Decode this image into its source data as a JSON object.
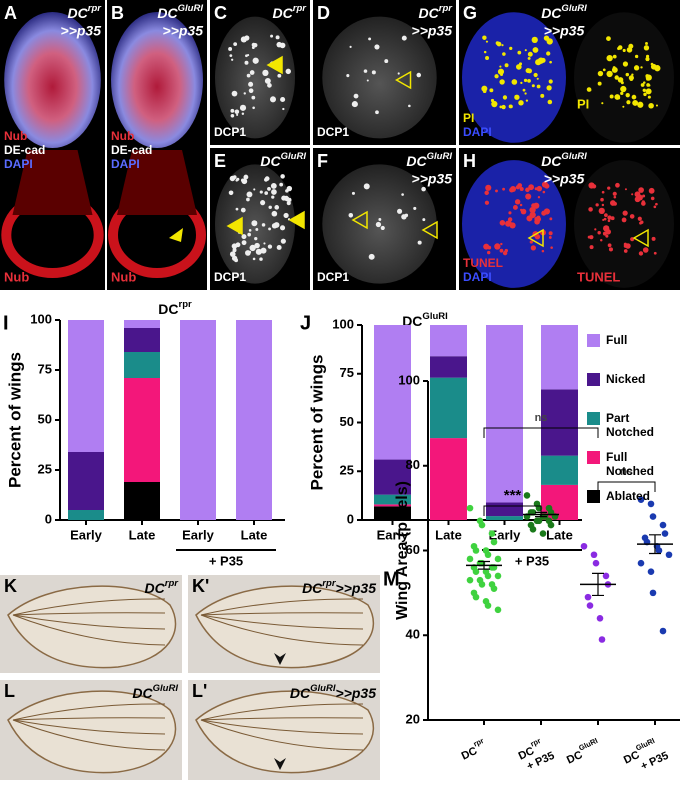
{
  "panels": [
    {
      "letter": "A",
      "genotype": "DC",
      "sup": "rpr",
      "suffix": ">>p35",
      "stains": [
        "Nub",
        "DE-cad",
        "DAPI"
      ],
      "stain_colors": [
        "#e8303a",
        "#ffffff",
        "#5a6cff"
      ],
      "second": [
        "Nub"
      ],
      "second_colors": [
        "#e8303a"
      ]
    },
    {
      "letter": "B",
      "genotype": "DC",
      "sup": "GluRI",
      "suffix": ">>p35",
      "stains": [
        "Nub",
        "DE-cad",
        "DAPI"
      ],
      "stain_colors": [
        "#e8303a",
        "#ffffff",
        "#5a6cff"
      ],
      "second": [
        "Nub"
      ],
      "second_colors": [
        "#e8303a"
      ]
    },
    {
      "letter": "C",
      "genotype": "DC",
      "sup": "rpr",
      "stains": [
        "DCP1"
      ],
      "stain_colors": [
        "#ffffff"
      ]
    },
    {
      "letter": "D",
      "genotype": "DC",
      "sup": "rpr",
      "suffix": ">>p35",
      "stains": [
        "DCP1"
      ],
      "stain_colors": [
        "#ffffff"
      ]
    },
    {
      "letter": "E",
      "genotype": "DC",
      "sup": "GluRI",
      "stains": [
        "DCP1"
      ],
      "stain_colors": [
        "#ffffff"
      ]
    },
    {
      "letter": "F",
      "genotype": "DC",
      "sup": "GluRI",
      "suffix": ">>p35",
      "stains": [
        "DCP1"
      ],
      "stain_colors": [
        "#ffffff"
      ]
    },
    {
      "letter": "G",
      "genotype": "DC",
      "sup": "GluRI",
      "suffix": ">>p35",
      "stains": [
        "PI",
        "DAPI"
      ],
      "stain_colors": [
        "#f2e600",
        "#3b4dff"
      ],
      "second": [
        "PI"
      ],
      "second_colors": [
        "#f2e600"
      ]
    },
    {
      "letter": "H",
      "genotype": "DC",
      "sup": "GluRI",
      "suffix": ">>p35",
      "stains": [
        "TUNEL",
        "DAPI"
      ],
      "stain_colors": [
        "#e8303a",
        "#3b4dff"
      ],
      "second": [
        "TUNEL"
      ],
      "second_colors": [
        "#e8303a"
      ]
    },
    {
      "letter": "K",
      "genotype": "DC",
      "sup": "rpr"
    },
    {
      "letter": "K'",
      "genotype": "DC",
      "sup": "rpr",
      "suffix": ">>p35"
    },
    {
      "letter": "L",
      "genotype": "DC",
      "sup": "GluRI"
    },
    {
      "letter": "L'",
      "genotype": "DC",
      "sup": "GluRI",
      "suffix": ">>p35"
    }
  ],
  "chart_data": [
    {
      "type": "stacked_bar",
      "panel_letter": "I",
      "title": "DC",
      "title_superscript": "rpr",
      "ylabel": "Percent of wings",
      "categories": [
        "Early",
        "Late",
        "Early",
        "Late"
      ],
      "group_label": "+ P35",
      "ylim": [
        0,
        100
      ],
      "yticks": [
        0,
        25,
        50,
        75,
        100
      ],
      "series": [
        {
          "name": "Full",
          "color": "#b07ef2",
          "values": [
            66,
            4,
            100,
            100
          ]
        },
        {
          "name": "Nicked",
          "color": "#4a168c",
          "values": [
            29,
            12,
            0,
            0
          ]
        },
        {
          "name": "Part Notched",
          "color": "#1a8c8a",
          "values": [
            5,
            13,
            0,
            0
          ]
        },
        {
          "name": "Full Notched",
          "color": "#f3177a",
          "values": [
            0,
            52,
            0,
            0
          ]
        },
        {
          "name": "Ablated",
          "color": "#000000",
          "values": [
            0,
            19,
            0,
            0
          ]
        }
      ]
    },
    {
      "type": "stacked_bar",
      "panel_letter": "J",
      "title": "DC",
      "title_superscript": "GluRI",
      "ylabel": "Percent of wings",
      "categories": [
        "Early",
        "Late",
        "Early",
        "Late"
      ],
      "group_label": "+ P35",
      "ylim": [
        0,
        100
      ],
      "yticks": [
        0,
        25,
        50,
        75,
        100
      ],
      "legend": "right",
      "series": [
        {
          "name": "Full",
          "color": "#b07ef2",
          "values": [
            69,
            16,
            91,
            33
          ]
        },
        {
          "name": "Nicked",
          "color": "#4a168c",
          "values": [
            18,
            11,
            7,
            34
          ]
        },
        {
          "name": "Part Notched",
          "color": "#1a8c8a",
          "values": [
            5,
            31,
            2,
            15
          ]
        },
        {
          "name": "Full Notched",
          "color": "#f3177a",
          "values": [
            1,
            42,
            0,
            18
          ]
        },
        {
          "name": "Ablated",
          "color": "#000000",
          "values": [
            7,
            0,
            0,
            0
          ]
        }
      ]
    },
    {
      "type": "strip",
      "panel_letter": "M",
      "ylabel": "Wing Area (pixels)",
      "categories": [
        "DC",
        "DC",
        "DC",
        "DC"
      ],
      "category_superscripts": [
        "rpr",
        "rpr",
        "GluRI",
        "GluRI"
      ],
      "category_suffixes": [
        null,
        "+ P35",
        null,
        "+ P35"
      ],
      "ylim": [
        20,
        100
      ],
      "yticks": [
        20,
        40,
        60,
        80,
        100
      ],
      "annotations": [
        "ns",
        "***",
        "ns"
      ],
      "groups": [
        {
          "color": "#3fd23f",
          "mean": 56.5,
          "sem": 0.9,
          "values": [
            70,
            67,
            66,
            64,
            62,
            61,
            60,
            60,
            59,
            58,
            58,
            57,
            57,
            56,
            56,
            56,
            55,
            55,
            54,
            54,
            53,
            53,
            52,
            52,
            51,
            50,
            49,
            48,
            47,
            46
          ]
        },
        {
          "color": "#1a7a1a",
          "mean": 68.5,
          "sem": 0.5,
          "values": [
            73,
            71,
            70,
            70,
            69,
            69,
            69,
            68,
            68,
            68,
            68,
            67,
            67,
            67,
            66,
            66,
            65,
            64
          ]
        },
        {
          "color": "#8a2be2",
          "mean": 52,
          "sem": 2.6,
          "values": [
            61,
            59,
            57,
            54,
            52,
            49,
            47,
            44,
            39
          ]
        },
        {
          "color": "#1a3ab0",
          "mean": 61.5,
          "sem": 2.2,
          "values": [
            72,
            71,
            68,
            66,
            64,
            63,
            62,
            61,
            60,
            59,
            57,
            55,
            50,
            41
          ]
        }
      ]
    }
  ]
}
